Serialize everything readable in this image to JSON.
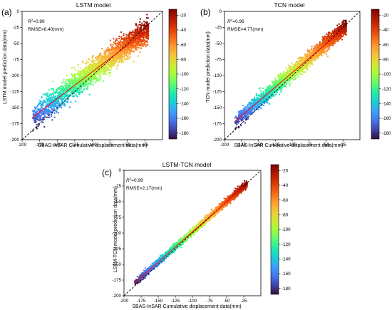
{
  "figure": {
    "x_label": "SBAS-InSAR Cumulative displacement data(mm)",
    "colorbar_ticks": [
      -20,
      -40,
      -60,
      -80,
      -100,
      -120,
      -140,
      -160,
      -180
    ],
    "colormap": [
      "#30123b",
      "#4145ab",
      "#4675ed",
      "#39a2fc",
      "#1bcfd4",
      "#24eca6",
      "#61fc6c",
      "#a4fc3b",
      "#d1e834",
      "#f3c63a",
      "#fe9b2d",
      "#f36315",
      "#d93806",
      "#b11901",
      "#7a0402"
    ],
    "colors": {
      "identity_line": "#000000",
      "fit_line": "#ff0000"
    }
  },
  "chart_data": [
    {
      "type": "scatter",
      "panel_label": "(a)",
      "title": "LSTM model",
      "xlabel": "SBAS-InSAR Cumulative displacement data(mm)",
      "ylabel": "LSTM model prediction data(mm)",
      "xlim": [
        -200,
        0
      ],
      "ylim": [
        -200,
        0
      ],
      "xticks": [
        -200,
        -175,
        -150,
        -125,
        -100,
        -75,
        -50,
        -25
      ],
      "yticks": [
        -200,
        -175,
        -150,
        -125,
        -100,
        -75,
        -50,
        -25,
        0
      ],
      "r2_prefix": "R",
      "r2_value": "=0.89",
      "rmse_text": "RMSE=8.40(mm)",
      "color_range": [
        -185,
        -15
      ],
      "fit_line": {
        "x": [
          -185,
          -25
        ],
        "y": [
          -165,
          -32
        ]
      },
      "reference_line": "y=x",
      "point_cloud": {
        "x_range": [
          -185,
          -20
        ],
        "spread_sd_mm": 9.5,
        "n_points_approx": 2600
      }
    },
    {
      "type": "scatter",
      "panel_label": "(b)",
      "title": "TCN model",
      "xlabel": "SBAS-InSAR Cumulative displacement data(mm)",
      "ylabel": "TCN model prediction data(mm)",
      "xlim": [
        -200,
        0
      ],
      "ylim": [
        -200,
        0
      ],
      "xticks": [
        -200,
        -175,
        -150,
        -125,
        -100,
        -75,
        -50,
        -25
      ],
      "yticks": [
        -200,
        -175,
        -150,
        -125,
        -100,
        -75,
        -50,
        -25,
        0
      ],
      "r2_prefix": "R",
      "r2_value": "=0.96",
      "rmse_text": "RMSE=4.77(mm)",
      "color_range": [
        -185,
        -15
      ],
      "fit_line": {
        "x": [
          -185,
          -25
        ],
        "y": [
          -172,
          -28
        ]
      },
      "reference_line": "y=x",
      "point_cloud": {
        "x_range": [
          -185,
          -20
        ],
        "spread_sd_mm": 5.5,
        "n_points_approx": 2600
      }
    },
    {
      "type": "scatter",
      "panel_label": "(c)",
      "title": "LSTM-TCN model",
      "xlabel": "SBAS-InSAR Cumulative displacement data(mm)",
      "ylabel": "LSTM-TCN model prediction data(mm)",
      "xlim": [
        -200,
        0
      ],
      "ylim": [
        -200,
        0
      ],
      "xticks": [
        -200,
        -175,
        -150,
        -125,
        -100,
        -75,
        -50,
        -25
      ],
      "yticks": [
        -200,
        -175,
        -150,
        -125,
        -100,
        -75,
        -50,
        -25,
        0
      ],
      "r2_prefix": "R",
      "r2_value": "=0.99",
      "rmse_text": "RMSE=2.17(mm)",
      "color_range": [
        -185,
        -15
      ],
      "fit_line": {
        "x": [
          -185,
          -25
        ],
        "y": [
          -180,
          -26
        ]
      },
      "reference_line": "y=x",
      "point_cloud": {
        "x_range": [
          -185,
          -20
        ],
        "spread_sd_mm": 2.6,
        "n_points_approx": 2600
      }
    }
  ]
}
